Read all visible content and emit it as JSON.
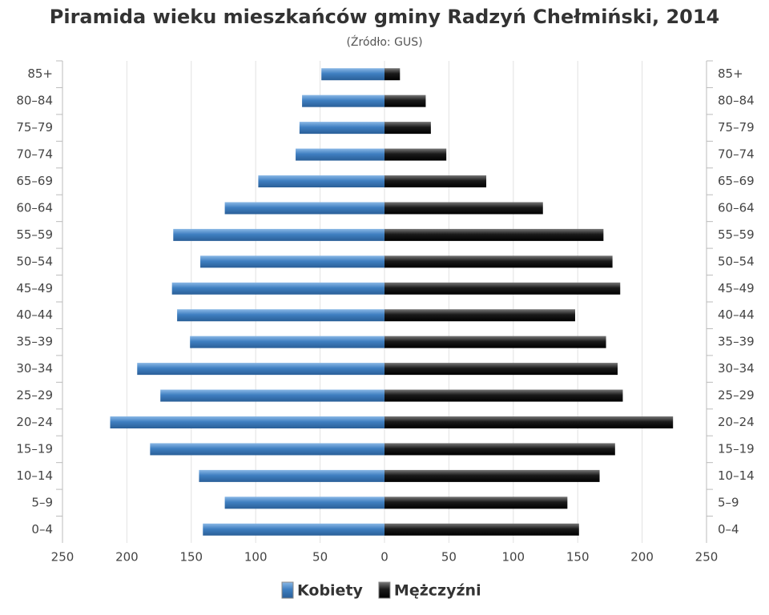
{
  "chart_data": {
    "type": "pyramid",
    "title": "Piramida wieku mieszkańców gminy Radzyń Chełmiński, 2014",
    "subtitle": "(Źródło: GUS)",
    "categories": [
      "85+",
      "80–84",
      "75–79",
      "70–74",
      "65–69",
      "60–64",
      "55–59",
      "50–54",
      "45–49",
      "40–44",
      "35–39",
      "30–34",
      "25–29",
      "20–24",
      "15–19",
      "10–14",
      "5–9",
      "0–4"
    ],
    "series": [
      {
        "name": "Kobiety",
        "color": "#3f7fc1",
        "side": "left",
        "values": [
          49,
          64,
          66,
          69,
          98,
          124,
          164,
          143,
          165,
          161,
          151,
          192,
          174,
          213,
          182,
          144,
          124,
          141
        ]
      },
      {
        "name": "Mężczyźni",
        "color": "#1a1a1a",
        "side": "right",
        "values": [
          12,
          32,
          36,
          48,
          79,
          123,
          170,
          177,
          183,
          148,
          172,
          181,
          185,
          224,
          179,
          167,
          142,
          151
        ]
      }
    ],
    "xlim": [
      0,
      250
    ],
    "xticks": [
      0,
      50,
      100,
      150,
      200,
      250
    ],
    "grid": true
  }
}
